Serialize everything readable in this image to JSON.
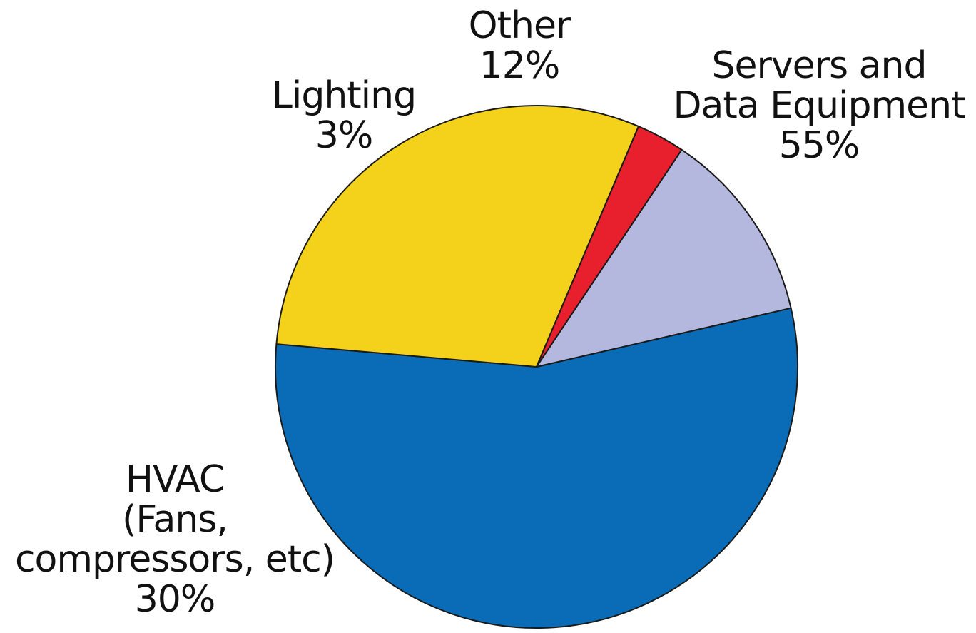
{
  "chart_data": {
    "type": "pie",
    "slices": [
      {
        "name": "Servers and Data Equipment",
        "label_lines": [
          "Servers and",
          "Data Equipment"
        ],
        "value_text": "55%",
        "value": 55,
        "color": "#0a6cb6"
      },
      {
        "name": "HVAC (Fans, compressors, etc)",
        "label_lines": [
          "HVAC",
          "(Fans,",
          "compressors, etc)"
        ],
        "value_text": "30%",
        "value": 30,
        "color": "#f4d21c"
      },
      {
        "name": "Lighting",
        "label_lines": [
          "Lighting"
        ],
        "value_text": "3%",
        "value": 3,
        "color": "#e81f2c"
      },
      {
        "name": "Other",
        "label_lines": [
          "Other"
        ],
        "value_text": "12%",
        "value": 12,
        "color": "#b4b7de"
      }
    ]
  }
}
